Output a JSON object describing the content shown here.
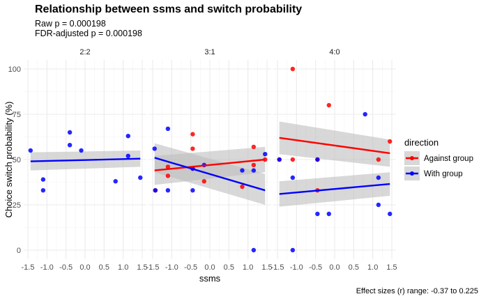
{
  "title": "Relationship between ssms and switch probability",
  "subtitle_raw": "Raw p = 0.000198",
  "subtitle_fdr": "FDR-adjusted p = 0.000198",
  "caption": "Effect sizes (r) range: -0.37 to 0.225",
  "colors": {
    "against": "#ff0000",
    "with": "#0000ff",
    "ribbon": "#bebebe",
    "grid": "#ebebeb"
  },
  "chart_data": {
    "type": "scatter",
    "xlabel": "ssms",
    "ylabel": "Choice switch probability (%)",
    "xlim": [
      -1.5,
      1.5
    ],
    "ylim": [
      0,
      100
    ],
    "xticks": [
      -1.5,
      -1.0,
      -0.5,
      0.0,
      0.5,
      1.0,
      1.5
    ],
    "xtick_labels": [
      "-1.5",
      "-1.0",
      "-0.5",
      "0.0",
      "0.5",
      "1.0",
      "1.5"
    ],
    "yticks": [
      0,
      25,
      50,
      75,
      100
    ],
    "grid": true,
    "legend": {
      "title": "direction",
      "position": "right",
      "entries": [
        {
          "key": "against",
          "label": "Against group"
        },
        {
          "key": "with",
          "label": "With group"
        }
      ]
    },
    "facets": [
      {
        "label": "2:2",
        "points": [
          {
            "x": -1.43,
            "y": 55,
            "series": "with"
          },
          {
            "x": -1.1,
            "y": 39,
            "series": "with"
          },
          {
            "x": -1.1,
            "y": 33,
            "series": "with"
          },
          {
            "x": -0.4,
            "y": 65,
            "series": "with"
          },
          {
            "x": -0.4,
            "y": 58,
            "series": "with"
          },
          {
            "x": -0.1,
            "y": 55,
            "series": "with"
          },
          {
            "x": 0.8,
            "y": 38,
            "series": "with"
          },
          {
            "x": 1.13,
            "y": 63,
            "series": "with"
          },
          {
            "x": 1.13,
            "y": 52,
            "series": "with"
          },
          {
            "x": 1.45,
            "y": 40,
            "series": "with"
          }
        ],
        "fits": [
          {
            "series": "with",
            "x": [
              -1.43,
              1.45
            ],
            "y": [
              49,
              50.5
            ],
            "ci_lo": [
              44,
              46
            ],
            "ci_hi": [
              54,
              55
            ]
          }
        ]
      },
      {
        "label": "3:1",
        "points": [
          {
            "x": -1.43,
            "y": 33,
            "series": "against"
          },
          {
            "x": -1.1,
            "y": 46,
            "series": "against"
          },
          {
            "x": -1.1,
            "y": 41,
            "series": "against"
          },
          {
            "x": -0.45,
            "y": 64,
            "series": "against"
          },
          {
            "x": -0.45,
            "y": 56,
            "series": "against"
          },
          {
            "x": -0.45,
            "y": 45,
            "series": "against"
          },
          {
            "x": -0.15,
            "y": 38,
            "series": "against"
          },
          {
            "x": 0.85,
            "y": 35,
            "series": "against"
          },
          {
            "x": 1.15,
            "y": 57,
            "series": "against"
          },
          {
            "x": 1.15,
            "y": 47,
            "series": "against"
          },
          {
            "x": 1.45,
            "y": 50,
            "series": "against"
          },
          {
            "x": -1.45,
            "y": 56,
            "series": "with"
          },
          {
            "x": -1.43,
            "y": 33,
            "series": "with"
          },
          {
            "x": -1.1,
            "y": 67,
            "series": "with"
          },
          {
            "x": -1.1,
            "y": 33,
            "series": "with"
          },
          {
            "x": -0.45,
            "y": 33,
            "series": "with"
          },
          {
            "x": -0.45,
            "y": 45,
            "series": "with"
          },
          {
            "x": -0.15,
            "y": 47,
            "series": "with"
          },
          {
            "x": 0.85,
            "y": 44,
            "series": "with"
          },
          {
            "x": 1.15,
            "y": 44,
            "series": "with"
          },
          {
            "x": 1.45,
            "y": 53,
            "series": "with"
          },
          {
            "x": 1.15,
            "y": 0,
            "series": "with"
          }
        ],
        "fits": [
          {
            "series": "against",
            "x": [
              -1.45,
              1.45
            ],
            "y": [
              44,
              50
            ],
            "ci_lo": [
              36,
              43
            ],
            "ci_hi": [
              52,
              57
            ]
          },
          {
            "series": "with",
            "x": [
              -1.45,
              1.45
            ],
            "y": [
              51,
              33
            ],
            "ci_lo": [
              43,
              25
            ],
            "ci_hi": [
              59,
              42
            ]
          }
        ]
      },
      {
        "label": "4:0",
        "points": [
          {
            "x": -1.45,
            "y": 50,
            "series": "against"
          },
          {
            "x": -1.1,
            "y": 100,
            "series": "against"
          },
          {
            "x": -1.1,
            "y": 50,
            "series": "against"
          },
          {
            "x": -0.45,
            "y": 50,
            "series": "against"
          },
          {
            "x": -0.45,
            "y": 33,
            "series": "against"
          },
          {
            "x": -0.15,
            "y": 80,
            "series": "against"
          },
          {
            "x": 1.15,
            "y": 50,
            "series": "against"
          },
          {
            "x": 1.45,
            "y": 60,
            "series": "against"
          },
          {
            "x": -1.45,
            "y": 50,
            "series": "with"
          },
          {
            "x": -1.1,
            "y": 40,
            "series": "with"
          },
          {
            "x": -1.1,
            "y": 0,
            "series": "with"
          },
          {
            "x": -0.45,
            "y": 50,
            "series": "with"
          },
          {
            "x": -0.45,
            "y": 20,
            "series": "with"
          },
          {
            "x": -0.15,
            "y": 20,
            "series": "with"
          },
          {
            "x": 0.8,
            "y": 75,
            "series": "with"
          },
          {
            "x": 1.15,
            "y": 40,
            "series": "with"
          },
          {
            "x": 1.15,
            "y": 25,
            "series": "with"
          },
          {
            "x": 1.45,
            "y": 20,
            "series": "with"
          }
        ],
        "fits": [
          {
            "series": "against",
            "x": [
              -1.45,
              1.45
            ],
            "y": [
              62,
              53.5
            ],
            "ci_lo": [
              53,
              46
            ],
            "ci_hi": [
              71,
              61
            ]
          },
          {
            "series": "with",
            "x": [
              -1.45,
              1.45
            ],
            "y": [
              31,
              36.5
            ],
            "ci_lo": [
              24,
              30
            ],
            "ci_hi": [
              38,
              43
            ]
          }
        ]
      }
    ]
  }
}
